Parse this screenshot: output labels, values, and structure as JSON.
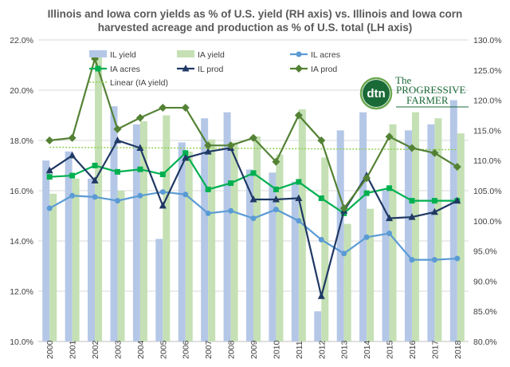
{
  "chart_data": {
    "type": "bar",
    "title_lines": [
      "Illinois and Iowa corn yields as % of U.S. yield (RH axis) vs. Illinois and Iowa corn",
      "harvested acreage and production as % of U.S. total (LH axis)"
    ],
    "categories": [
      "2000",
      "2001",
      "2002",
      "2003",
      "2004",
      "2005",
      "2006",
      "2007",
      "2008",
      "2009",
      "2010",
      "2011",
      "2012",
      "2013",
      "2014",
      "2015",
      "2016",
      "2017",
      "2018"
    ],
    "left_axis": {
      "min": 10.0,
      "max": 22.0,
      "step": 2.0,
      "format": "pct1",
      "ticks": [
        "10.0%",
        "12.0%",
        "14.0%",
        "16.0%",
        "18.0%",
        "20.0%",
        "22.0%"
      ]
    },
    "right_axis": {
      "min": 80.0,
      "max": 130.0,
      "step": 5.0,
      "format": "pct1",
      "ticks": [
        "80.0%",
        "85.0%",
        "90.0%",
        "95.0%",
        "100.0%",
        "105.0%",
        "110.0%",
        "115.0%",
        "120.0%",
        "125.0%",
        "130.0%"
      ]
    },
    "bar_series": [
      {
        "name": "IL yield",
        "color": "#b4c7e7",
        "axis": "right",
        "values": [
          110,
          111.5,
          107,
          119,
          116,
          97,
          113,
          117,
          118,
          108.5,
          108,
          106.5,
          85,
          115,
          118,
          105,
          115,
          116,
          120
        ]
      },
      {
        "name": "IA yield",
        "color": "#c5e0b4",
        "axis": "right",
        "values": [
          104.5,
          107,
          128,
          105,
          116.5,
          117.5,
          111.5,
          113.5,
          113,
          114,
          111,
          118.5,
          110.5,
          99.5,
          102,
          116,
          118,
          117,
          114.5
        ]
      }
    ],
    "line_series": [
      {
        "name": "IL acres",
        "color": "#5b9bd5",
        "marker": "circle",
        "axis": "left",
        "values": [
          15.3,
          15.8,
          15.75,
          15.6,
          15.8,
          15.95,
          15.85,
          15.1,
          15.2,
          14.9,
          15.25,
          14.8,
          14.05,
          13.5,
          14.15,
          14.3,
          13.25,
          13.25,
          13.3
        ]
      },
      {
        "name": "IA acres",
        "color": "#00b050",
        "marker": "square",
        "axis": "left",
        "values": [
          16.55,
          16.6,
          17.0,
          16.75,
          16.85,
          16.65,
          17.5,
          16.05,
          16.3,
          16.7,
          16.05,
          16.35,
          15.7,
          15.1,
          15.9,
          16.1,
          15.6,
          15.6,
          15.6
        ]
      },
      {
        "name": "IL prod",
        "color": "#1f3864",
        "marker": "triangle",
        "axis": "left",
        "values": [
          16.8,
          17.4,
          16.4,
          18.0,
          17.7,
          15.4,
          17.3,
          17.55,
          17.7,
          15.65,
          15.65,
          15.7,
          11.8,
          15.2,
          16.6,
          14.9,
          14.95,
          15.15,
          15.6
        ]
      },
      {
        "name": "IA prod",
        "color": "#548235",
        "marker": "diamond",
        "axis": "left",
        "values": [
          18.0,
          18.1,
          21.25,
          18.45,
          18.9,
          19.3,
          19.3,
          17.8,
          17.8,
          18.1,
          17.15,
          19.0,
          18.0,
          15.3,
          16.5,
          18.15,
          17.7,
          17.5,
          16.95
        ]
      }
    ],
    "trendline": {
      "name": "Linear (IA yield)",
      "color": "#92d050",
      "axis": "right",
      "start": 112.2,
      "end": 111.8
    },
    "legend": {
      "position": "top-left",
      "order": [
        "IL yield",
        "IA yield",
        "IL acres",
        "IA acres",
        "IL prod",
        "IA prod",
        "Linear (IA yield)"
      ]
    },
    "grid": {
      "horizontal": true,
      "vertical": false,
      "color": "#d9d9d9"
    }
  },
  "logo": {
    "mark": "dtn",
    "line1": "PROGRESSIVE",
    "line2": "FARMER",
    "prefix": "The"
  }
}
